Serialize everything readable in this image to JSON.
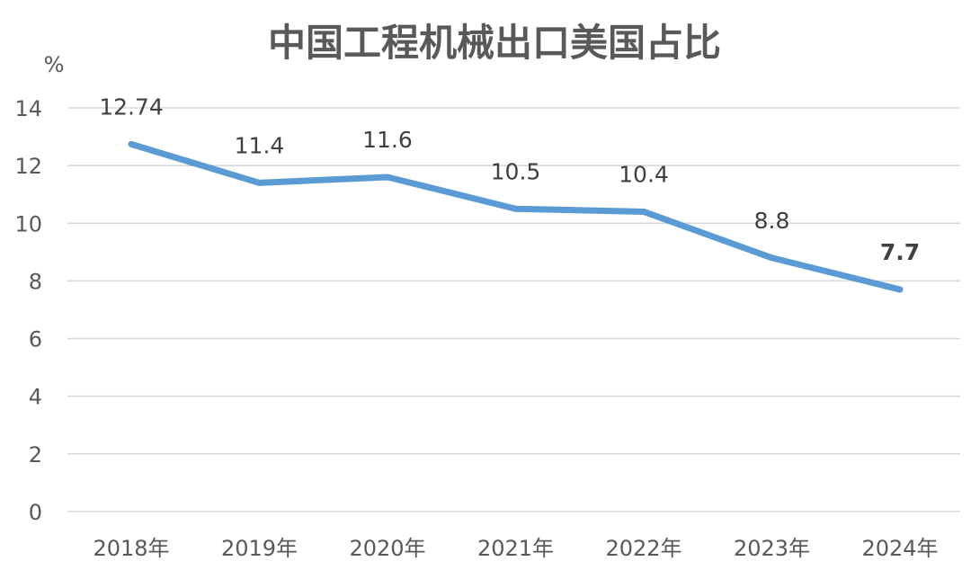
{
  "chart_data": {
    "type": "line",
    "title": "中国工程机械出口美国占比",
    "ylabel": "%",
    "xlabel": "",
    "categories": [
      "2018年",
      "2019年",
      "2020年",
      "2021年",
      "2022年",
      "2023年",
      "2024年"
    ],
    "series": [
      {
        "values": [
          12.74,
          11.4,
          11.6,
          10.5,
          10.4,
          8.8,
          7.7
        ],
        "color": "#5b9bd5"
      }
    ],
    "data_labels": [
      "12.74",
      "11.4",
      "11.6",
      "10.5",
      "10.4",
      "8.8",
      "7.7"
    ],
    "highlight_last_label_color": "#ff0000",
    "ylim": [
      0,
      14
    ],
    "yticks": [
      0,
      2,
      4,
      6,
      8,
      10,
      12,
      14
    ],
    "ytick_labels": [
      "0",
      "2",
      "4",
      "6",
      "8",
      "10",
      "12",
      "14"
    ],
    "grid": true,
    "legend": "none"
  }
}
